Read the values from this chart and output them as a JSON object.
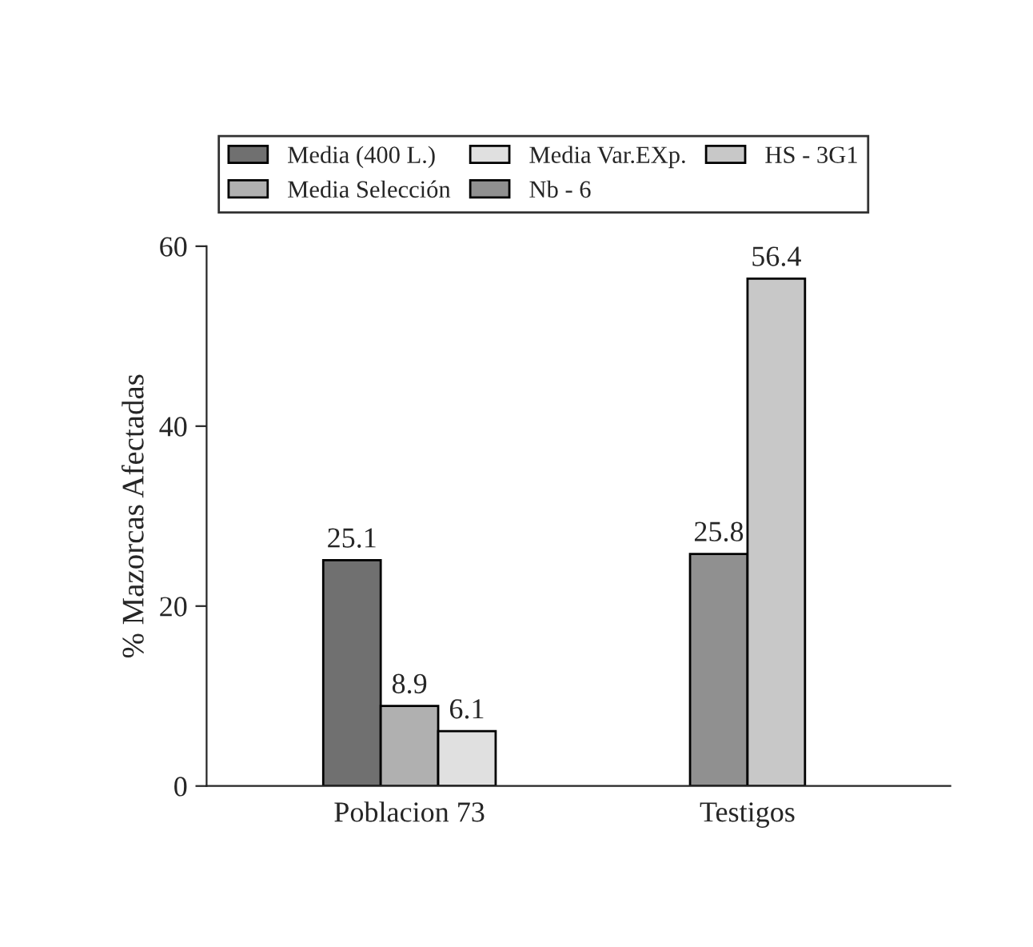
{
  "chart_data": {
    "type": "bar",
    "ylabel": "% Mazorcas Afectadas",
    "categories": [
      "Poblacion 73",
      "Testigos"
    ],
    "series": [
      {
        "name": "Media (400 L.)",
        "color": "#707070",
        "values": [
          25.1,
          null
        ]
      },
      {
        "name": "Media Selección",
        "color": "#b0b0b0",
        "values": [
          8.9,
          null
        ]
      },
      {
        "name": "Media Var.EXp.",
        "color": "#e0e0e0",
        "values": [
          6.1,
          null
        ]
      },
      {
        "name": "Nb - 6",
        "color": "#909090",
        "values": [
          null,
          25.8
        ]
      },
      {
        "name": "HS - 3G1",
        "color": "#c8c8c8",
        "values": [
          null,
          56.4
        ]
      }
    ],
    "ylim": [
      0,
      60
    ],
    "yticks": [
      0,
      20,
      40,
      60
    ],
    "grid": false,
    "legend": "top",
    "data_labels": true
  }
}
